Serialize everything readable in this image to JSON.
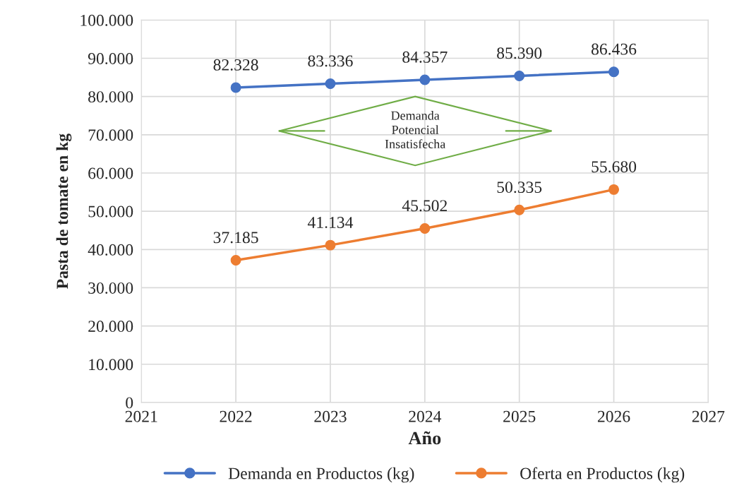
{
  "chart_data": {
    "type": "line",
    "xlabel": "Año",
    "ylabel": "Pasta de tomate en kg",
    "x": [
      2022,
      2023,
      2024,
      2025,
      2026
    ],
    "series": [
      {
        "name": "Demanda en Productos (kg)",
        "color": "#4472c4",
        "values": [
          82328,
          83336,
          84357,
          85390,
          86436
        ],
        "value_labels": [
          "82.328",
          "83.336",
          "84.357",
          "85.390",
          "86.436"
        ]
      },
      {
        "name": "Oferta en Productos (kg)",
        "color": "#ed7d31",
        "values": [
          37185,
          41134,
          45502,
          50335,
          55680
        ],
        "value_labels": [
          "37.185",
          "41.134",
          "45.502",
          "50.335",
          "55.680"
        ]
      }
    ],
    "xlim": [
      2021,
      2027
    ],
    "xticks": [
      2021,
      2022,
      2023,
      2024,
      2025,
      2026,
      2027
    ],
    "ylim": [
      0,
      100000
    ],
    "yticks": [
      0,
      {
        "value": 10000,
        "label": "10.000"
      },
      {
        "value": 20000,
        "label": "20.000"
      },
      {
        "value": 30000,
        "label": "30.000"
      },
      {
        "value": 40000,
        "label": "40.000"
      },
      {
        "value": 50000,
        "label": "50.000"
      },
      {
        "value": 60000,
        "label": "60.000"
      },
      {
        "value": 70000,
        "label": "70.000"
      },
      {
        "value": 80000,
        "label": "80.000"
      },
      {
        "value": 90000,
        "label": "90.000"
      },
      {
        "value": 100000,
        "label": "100.000"
      }
    ],
    "annotations": [
      "Demanda\nPotencial\nInsatisfecha"
    ],
    "grid": true,
    "legend": "bottom",
    "marker": "circle",
    "line_style": "solid"
  }
}
